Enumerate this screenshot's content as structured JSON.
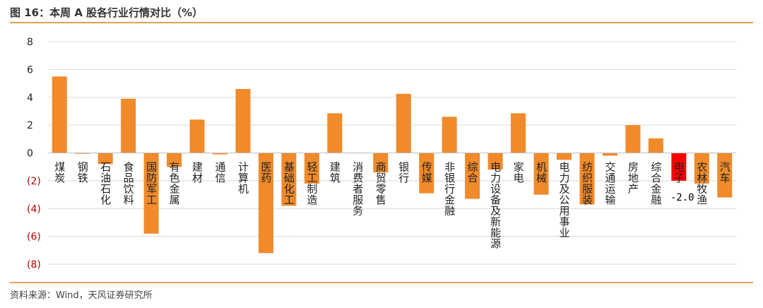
{
  "header": {
    "title": "图 16：本周 A 股各行业行情对比（%）"
  },
  "footer": {
    "source": "资料来源：Wind，天风证券研究所"
  },
  "colors": {
    "bar": "#f08a2a",
    "highlight": "#ff0000",
    "negative_tick": "#c00000",
    "grid": "#d9d9d9",
    "axis_text": "#222222"
  },
  "chart_data": {
    "type": "bar",
    "title": "",
    "xlabel": "",
    "ylabel": "",
    "ylim": [
      -8,
      8
    ],
    "yticks": [
      8,
      6,
      4,
      2,
      0,
      -2,
      -4,
      -6,
      -8
    ],
    "ytick_labels": [
      "8",
      "6",
      "4",
      "2",
      "0",
      "(2)",
      "(4)",
      "(6)",
      "(8)"
    ],
    "grid": true,
    "categories": [
      "煤炭",
      "钢铁",
      "石油石化",
      "食品饮料",
      "国防军工",
      "有色金属",
      "建材",
      "通信",
      "计算机",
      "医药",
      "基础化工",
      "轻工制造",
      "建筑",
      "消费者服务",
      "商贸零售",
      "银行",
      "传媒",
      "非银行金融",
      "综合",
      "电力设备及新能源",
      "家电",
      "机械",
      "电力及公用事业",
      "纺织服装",
      "交通运输",
      "房地产",
      "综合金融",
      "电子",
      "农林牧渔",
      "汽车"
    ],
    "values": [
      5.5,
      -0.05,
      -0.8,
      3.9,
      -5.8,
      -1.0,
      2.4,
      -0.1,
      4.6,
      -7.2,
      -3.8,
      -2.2,
      2.85,
      0.0,
      -1.4,
      4.25,
      -2.9,
      2.6,
      -3.3,
      -1.2,
      2.85,
      -3.0,
      -0.5,
      -3.7,
      -0.2,
      2.0,
      1.05,
      -2.0,
      -2.2,
      -3.2
    ],
    "highlight_index": 27,
    "data_labels": [
      {
        "index": 27,
        "text": "-2.0"
      }
    ]
  }
}
